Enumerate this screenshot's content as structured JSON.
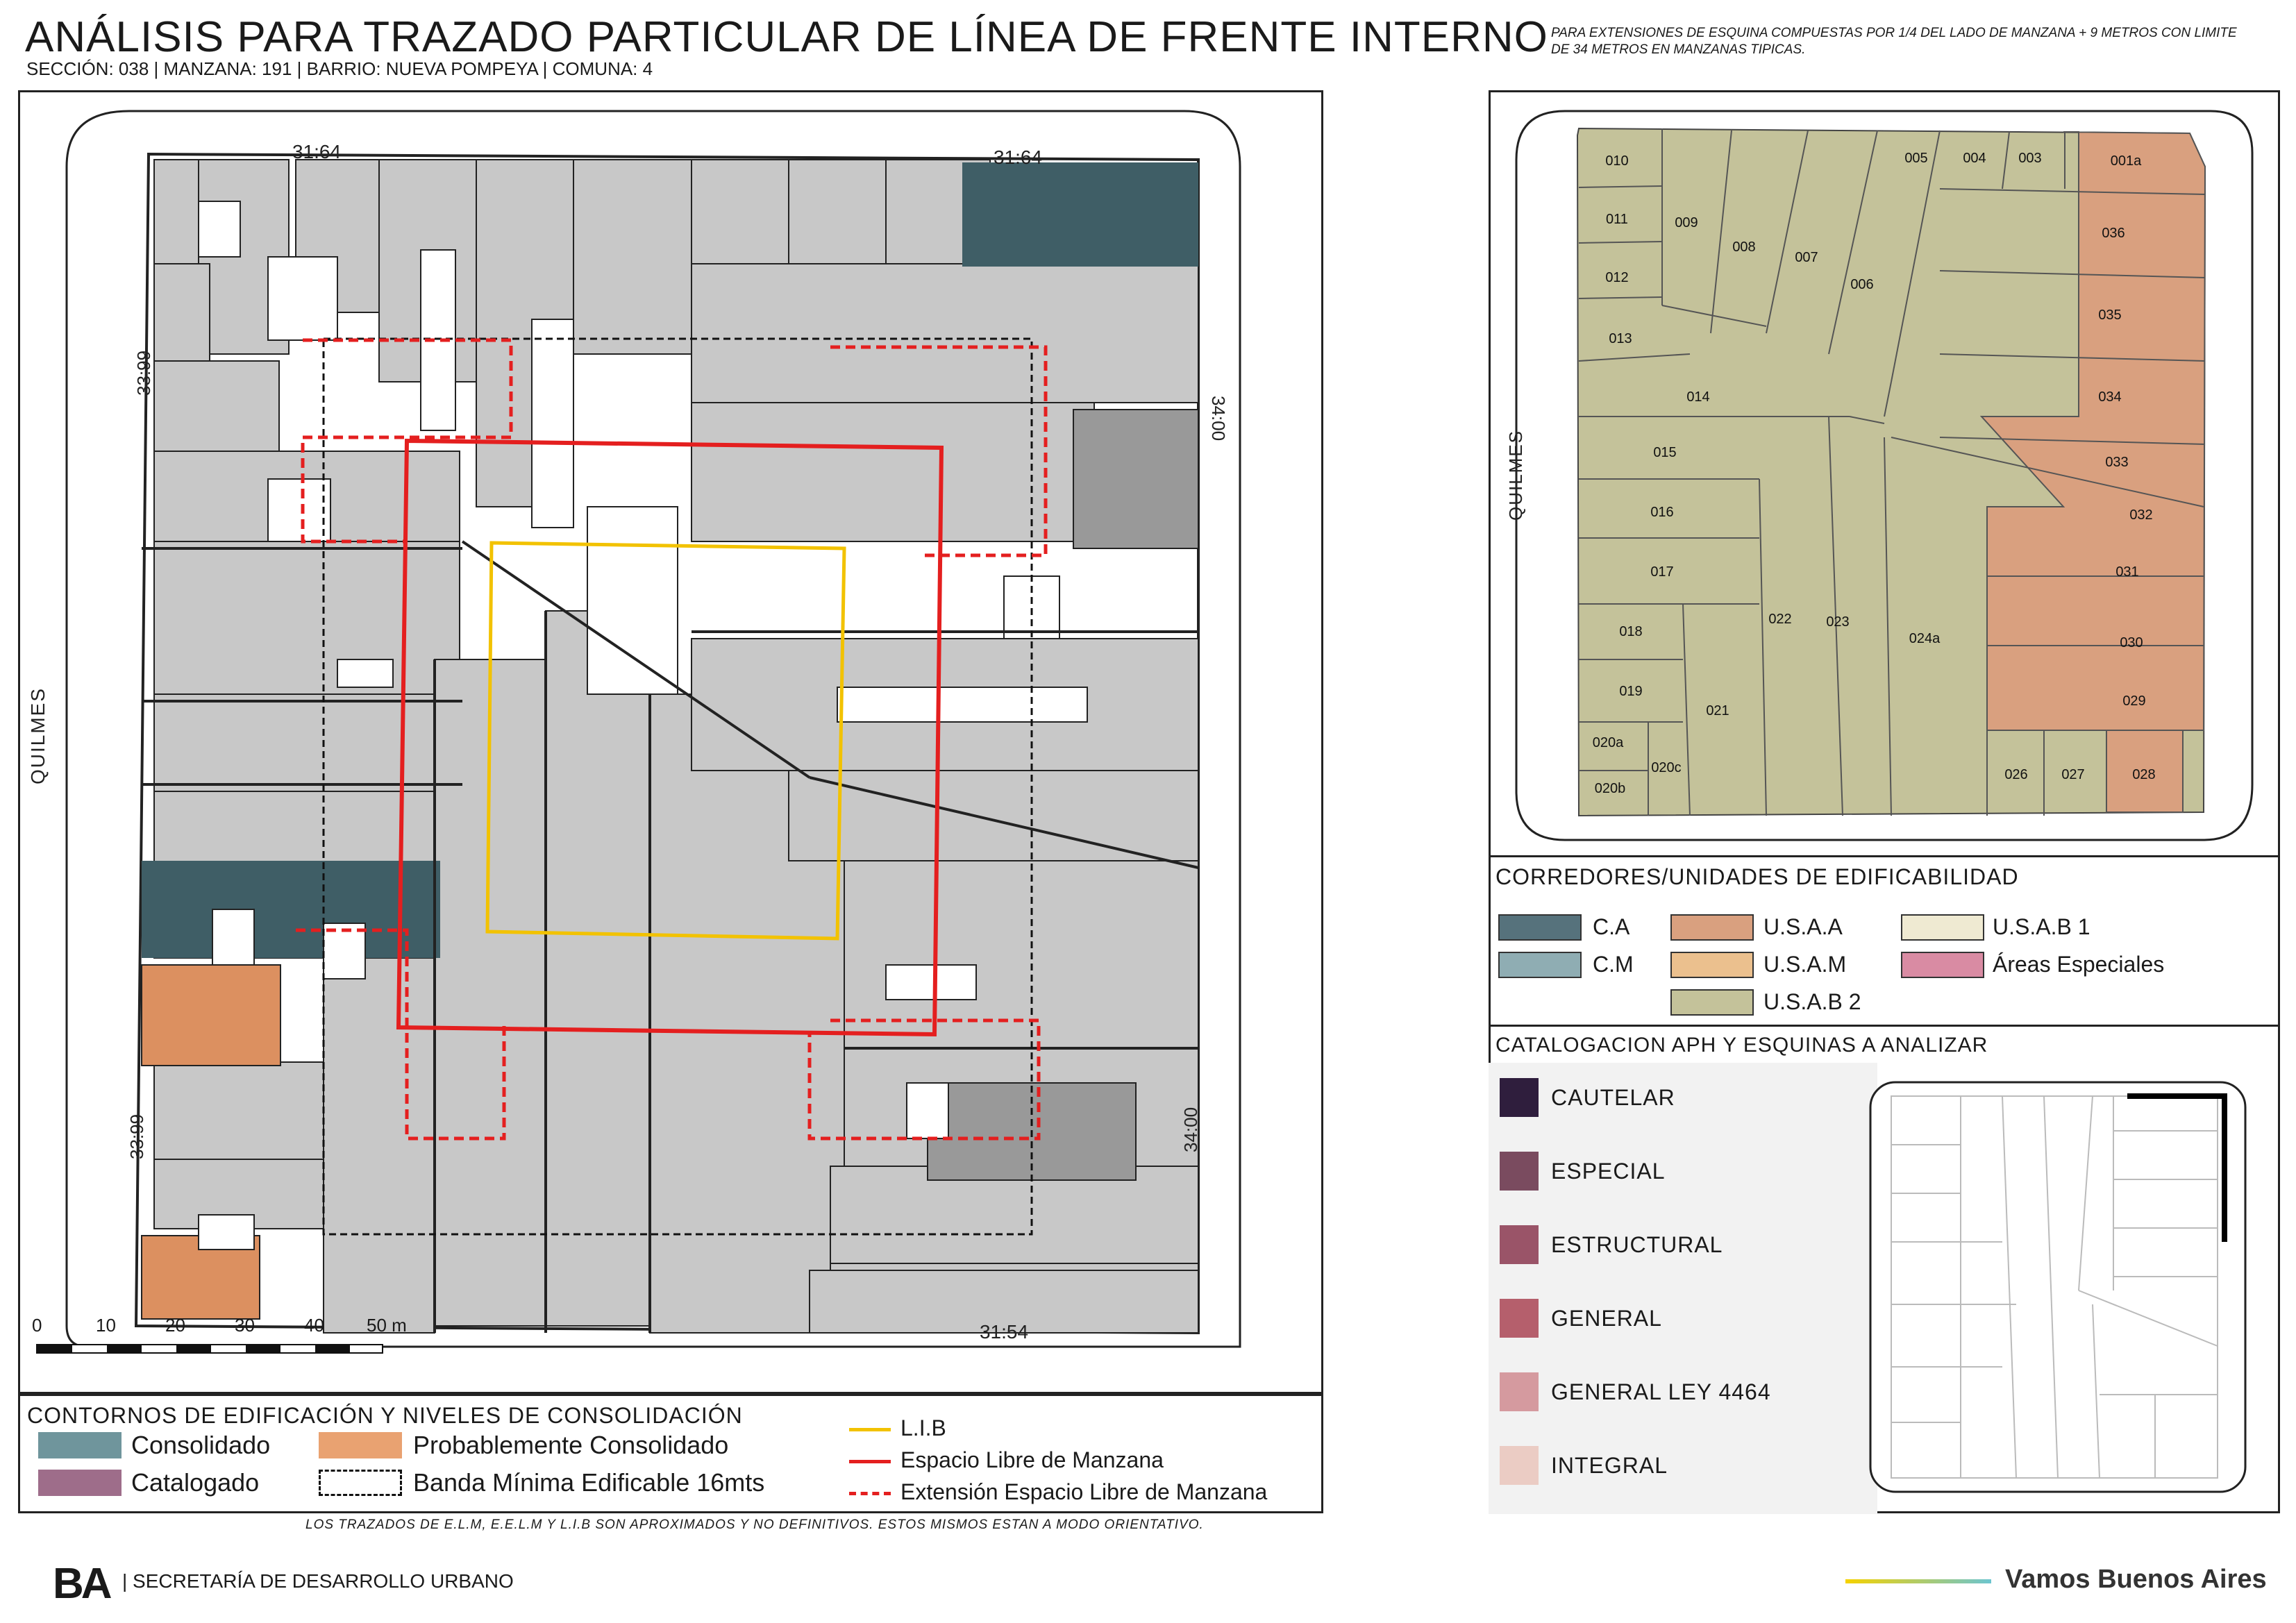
{
  "header": {
    "title": "ANÁLISIS PARA TRAZADO PARTICULAR DE LÍNEA DE FRENTE INTERNO",
    "subtitle": "SECCIÓN: 038 |  MANZANA: 191 | BARRIO: NUEVA POMPEYA | COMUNA: 4",
    "note": "PARA EXTENSIONES DE ESQUINA COMPUESTAS POR 1/4 DEL LADO DE MANZANA + 9 METROS CON LIMITE DE 34 METROS EN MANZANAS TIPICAS."
  },
  "main_map": {
    "street_label": "QUILMES",
    "dims": {
      "top_left": "31.64",
      "top_right": "31.64",
      "left_top": "33.99",
      "left_bottom": "33.99",
      "right_top": "34.00",
      "right_bottom": "34.00",
      "bottom": "31.54"
    },
    "scale": {
      "ticks": [
        "0",
        "10",
        "20",
        "30",
        "40",
        "50 m"
      ]
    }
  },
  "legend_main": {
    "title": "CONTORNOS DE EDIFICACIÓN Y NIVELES DE CONSOLIDACIÓN",
    "items": [
      {
        "label": "Consolidado",
        "color": "#6f959c"
      },
      {
        "label": "Probablemente Consolidado",
        "color": "#e9a271"
      },
      {
        "label": "Catalogado",
        "color": "#9e6d8a"
      },
      {
        "label": "Banda Mínima Edificable 16mts",
        "color": "#ffffff"
      }
    ],
    "lines": [
      {
        "label": "L.I.B",
        "color": "#f2c200"
      },
      {
        "label": "Espacio Libre de Manzana",
        "color": "#e41f1f"
      },
      {
        "label": "Extensión Espacio Libre de Manzana",
        "color": "#e41f1f"
      }
    ]
  },
  "parcel_map": {
    "street_label": "QUILMES",
    "parcels": [
      "010",
      "011",
      "012",
      "013",
      "014",
      "015",
      "016",
      "017",
      "018",
      "019",
      "020a",
      "020b",
      "020c",
      "021",
      "022",
      "023",
      "024a",
      "009",
      "008",
      "007",
      "006",
      "005",
      "004",
      "003",
      "001a",
      "036",
      "035",
      "034",
      "033",
      "032",
      "031",
      "030",
      "029",
      "028",
      "027",
      "026"
    ]
  },
  "legend_corridors": {
    "title": "CORREDORES/UNIDADES DE EDIFICABILIDAD",
    "items": [
      {
        "label": "C.A",
        "color": "#56727c"
      },
      {
        "label": "U.S.A.A",
        "color": "#d9a07f"
      },
      {
        "label": "U.S.A.B 1",
        "color": "#efead2"
      },
      {
        "label": "C.M",
        "color": "#8fadb3"
      },
      {
        "label": "U.S.A.M",
        "color": "#ebc08e"
      },
      {
        "label": "Áreas Especiales",
        "color": "#d98ba3"
      },
      {
        "label": "U.S.A.B 2",
        "color": "#c4c29a"
      }
    ]
  },
  "legend_catalog": {
    "title": "CATALOGACION APH Y ESQUINAS A ANALIZAR",
    "items": [
      {
        "label": "CAUTELAR",
        "color": "#2f1e3d"
      },
      {
        "label": "ESPECIAL",
        "color": "#7a4b5f"
      },
      {
        "label": "ESTRUCTURAL",
        "color": "#9a5468"
      },
      {
        "label": "GENERAL",
        "color": "#b55f6c"
      },
      {
        "label": "GENERAL LEY 4464",
        "color": "#d59a9f"
      },
      {
        "label": "INTEGRAL",
        "color": "#ebccc4"
      }
    ]
  },
  "footer": {
    "note": "LOS TRAZADOS DE E.L.M, E.E.L.M Y L.I.B SON APROXIMADOS Y NO DEFINITIVOS. ESTOS MISMOS ESTAN A MODO ORIENTATIVO.",
    "logo": "BA",
    "secretaria": "| SECRETARÍA DE DESARROLLO URBANO",
    "slogan": "Vamos Buenos Aires"
  }
}
